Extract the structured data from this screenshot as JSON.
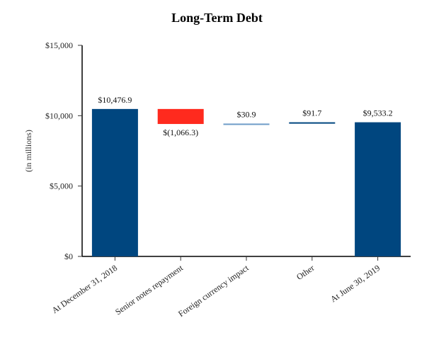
{
  "chart_data": {
    "type": "bar",
    "subtype": "waterfall",
    "title": "Long-Term Debt",
    "xlabel": "",
    "ylabel": "(in millions)",
    "ylim": [
      0,
      15000
    ],
    "yticks": [
      0,
      5000,
      10000,
      15000
    ],
    "ytick_labels": [
      "$0",
      "$5,000",
      "$10,000",
      "$15,000"
    ],
    "grid": false,
    "legend": null,
    "categories": [
      "At December 31, 2018",
      "Senior notes repayment",
      "Foreign currency impact",
      "Other",
      "At June 30, 2019"
    ],
    "values": [
      10476.9,
      -1066.3,
      30.9,
      91.7,
      9533.2
    ],
    "data_labels": [
      "$10,476.9",
      "$(1,066.3)",
      "$30.9",
      "$91.7",
      "$9,533.2"
    ],
    "bar_kinds": [
      "total",
      "decrease",
      "increase",
      "increase",
      "total"
    ],
    "colors": [
      "#00467F",
      "#FF2A1E",
      "#6E9CC8",
      "#00467F",
      "#00467F"
    ]
  }
}
